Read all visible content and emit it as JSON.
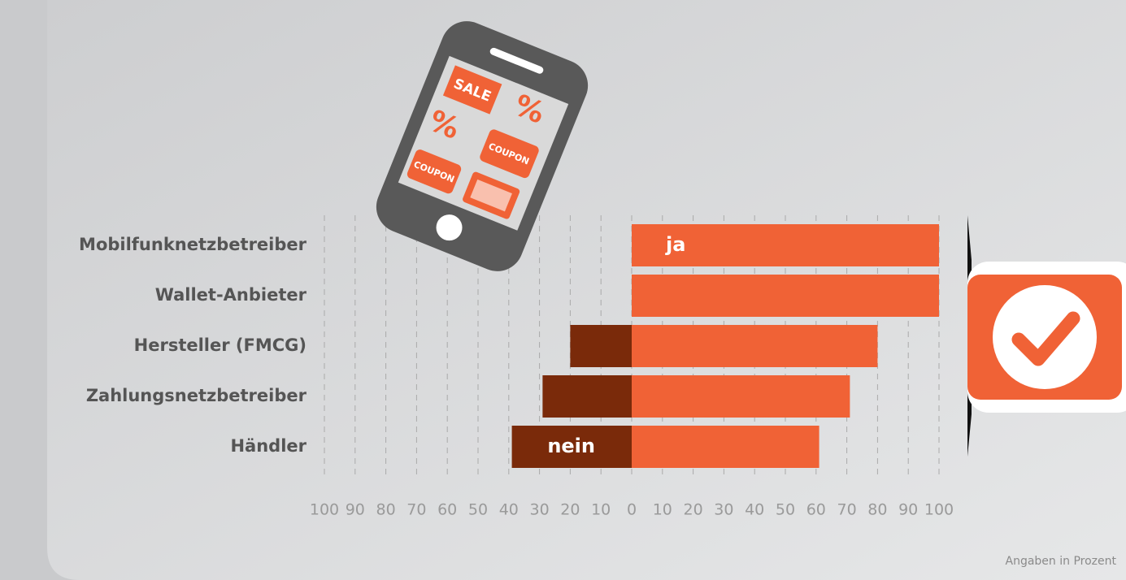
{
  "chart_data": {
    "type": "diverging_bar",
    "categories": [
      "Mobilfunknetzbetreiber",
      "Wallet-Anbieter",
      "Hersteller (FMCG)",
      "Zahlungsnetzbetreiber",
      "Händler"
    ],
    "series": [
      {
        "name": "ja",
        "color": "#f06236",
        "values": [
          100,
          100,
          80,
          71,
          61
        ]
      },
      {
        "name": "nein",
        "color": "#7a2a0a",
        "values": [
          0,
          0,
          -20,
          -29,
          -39
        ]
      }
    ],
    "xlim": [
      -100,
      100
    ],
    "xticks": [
      {
        "value": -100,
        "label": "100"
      },
      {
        "value": -90,
        "label": "90"
      },
      {
        "value": -80,
        "label": "80"
      },
      {
        "value": -70,
        "label": "70"
      },
      {
        "value": -60,
        "label": "60"
      },
      {
        "value": -50,
        "label": "50"
      },
      {
        "value": -40,
        "label": "40"
      },
      {
        "value": -30,
        "label": "30"
      },
      {
        "value": -20,
        "label": "20"
      },
      {
        "value": -10,
        "label": "10"
      },
      0,
      10,
      20,
      30,
      40,
      50,
      60,
      70,
      80,
      90,
      100
    ],
    "grid": true,
    "annotation": "Angaben in Prozent",
    "illustration_labels": [
      "SALE",
      "%",
      "%",
      "COUPON",
      "COUPON"
    ]
  }
}
